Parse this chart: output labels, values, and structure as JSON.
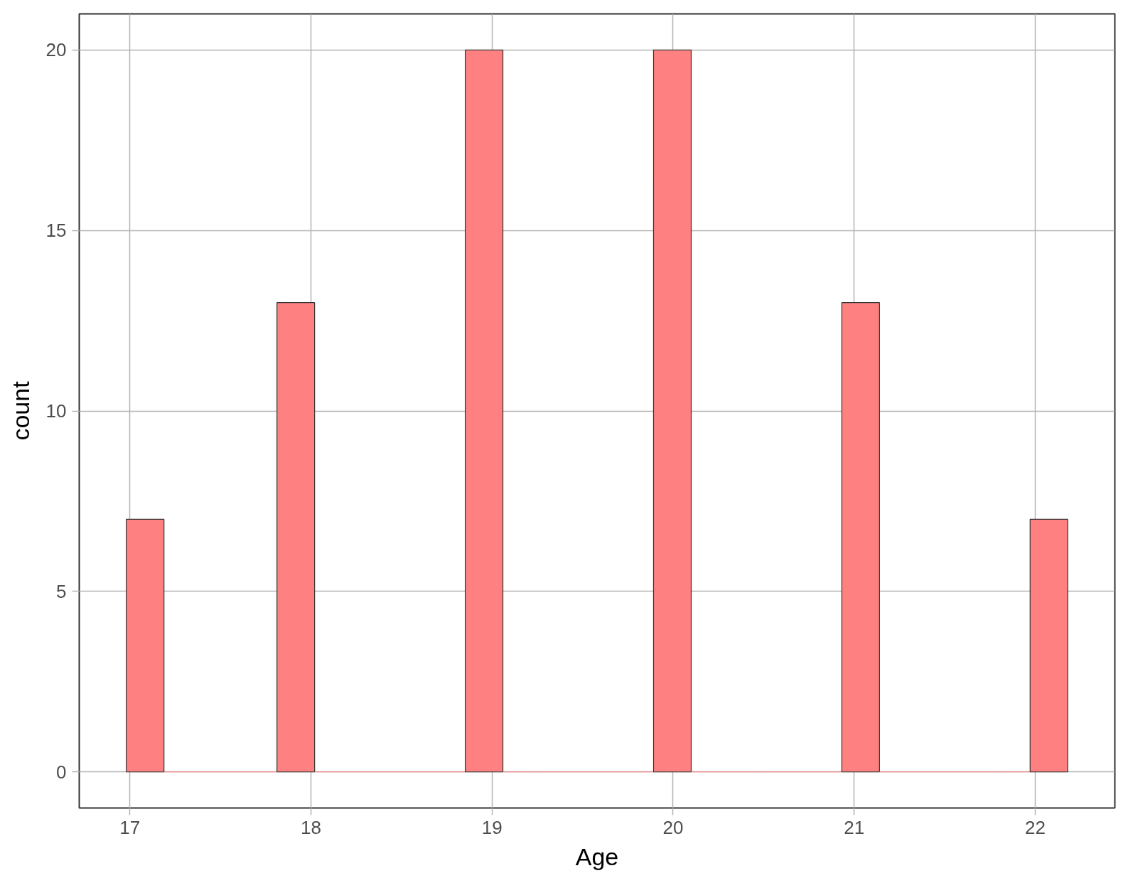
{
  "chart_data": {
    "type": "histogram",
    "xlabel": "Age",
    "ylabel": "count",
    "bins": [
      16.98,
      17.188,
      17.396,
      17.604,
      17.812,
      18.02,
      18.228,
      18.436,
      18.644,
      18.852,
      19.06,
      19.268,
      19.476,
      19.684,
      19.892,
      20.1,
      20.308,
      20.516,
      20.724,
      20.932,
      21.14,
      21.348,
      21.556,
      21.764,
      21.972,
      22.18
    ],
    "values": [
      7,
      0,
      0,
      0,
      13,
      0,
      0,
      0,
      0,
      20,
      0,
      0,
      0,
      0,
      20,
      0,
      0,
      0,
      0,
      13,
      0,
      0,
      0,
      0,
      7
    ],
    "color": "#ff8080",
    "xlim": [
      16.72,
      22.44
    ],
    "ylim": [
      -1,
      21
    ],
    "xticks": [
      17,
      18,
      19,
      20,
      21,
      22
    ],
    "yticks": [
      0,
      5,
      10,
      15,
      20
    ],
    "grid": true
  }
}
